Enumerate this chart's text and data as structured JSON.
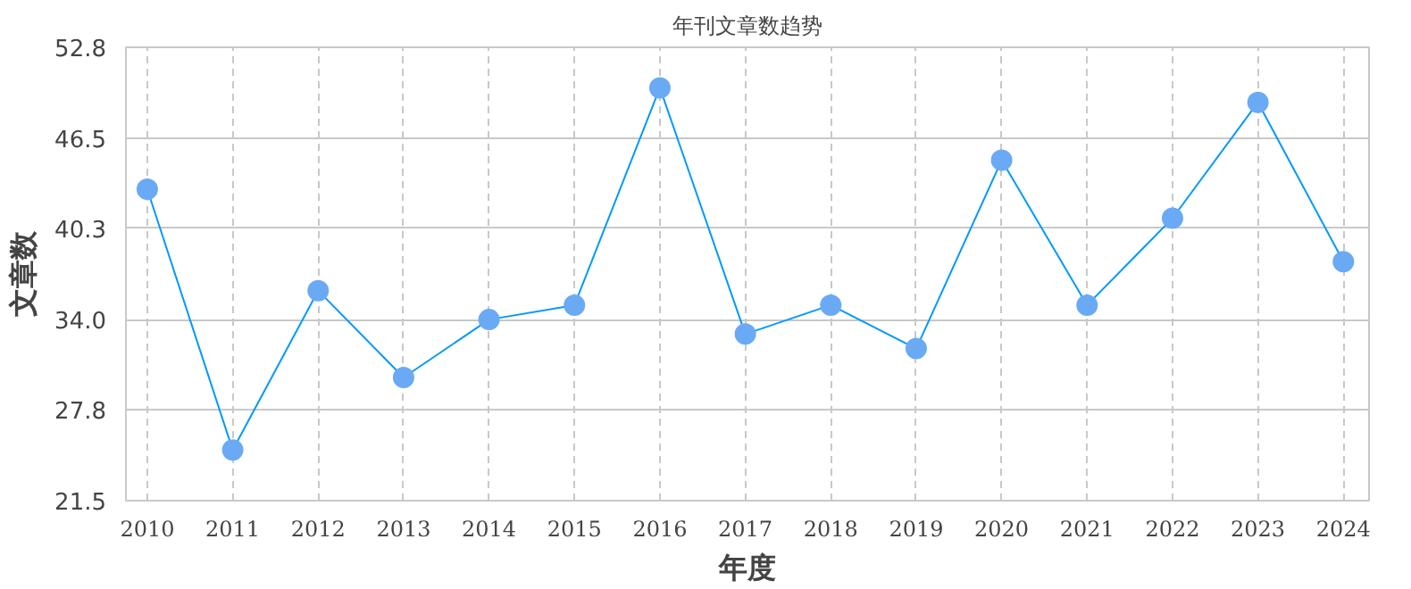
{
  "chart_data": {
    "type": "line",
    "title": "年刊文章数趋势",
    "xlabel": "年度",
    "ylabel": "文章数",
    "categories": [
      "2010",
      "2011",
      "2012",
      "2013",
      "2014",
      "2015",
      "2016",
      "2017",
      "2018",
      "2019",
      "2020",
      "2021",
      "2022",
      "2023",
      "2024"
    ],
    "series": [
      {
        "color": "#0099ff",
        "values": [
          43,
          25,
          36,
          30,
          34,
          35,
          50,
          33,
          35,
          32,
          45,
          35,
          41,
          49,
          38
        ]
      }
    ],
    "ylim": [
      21.5,
      52.8
    ],
    "yticks": [
      {
        "value": 21.5,
        "label": "21.5"
      },
      {
        "value": 27.8,
        "label": "27.8"
      },
      {
        "value": 34.0,
        "label": "34.0"
      },
      {
        "value": 40.3,
        "label": "40.3"
      },
      {
        "value": 46.5,
        "label": "46.5"
      },
      {
        "value": 52.8,
        "label": "52.8"
      }
    ],
    "grid": true,
    "marker": "circle",
    "line_style": "solid"
  }
}
